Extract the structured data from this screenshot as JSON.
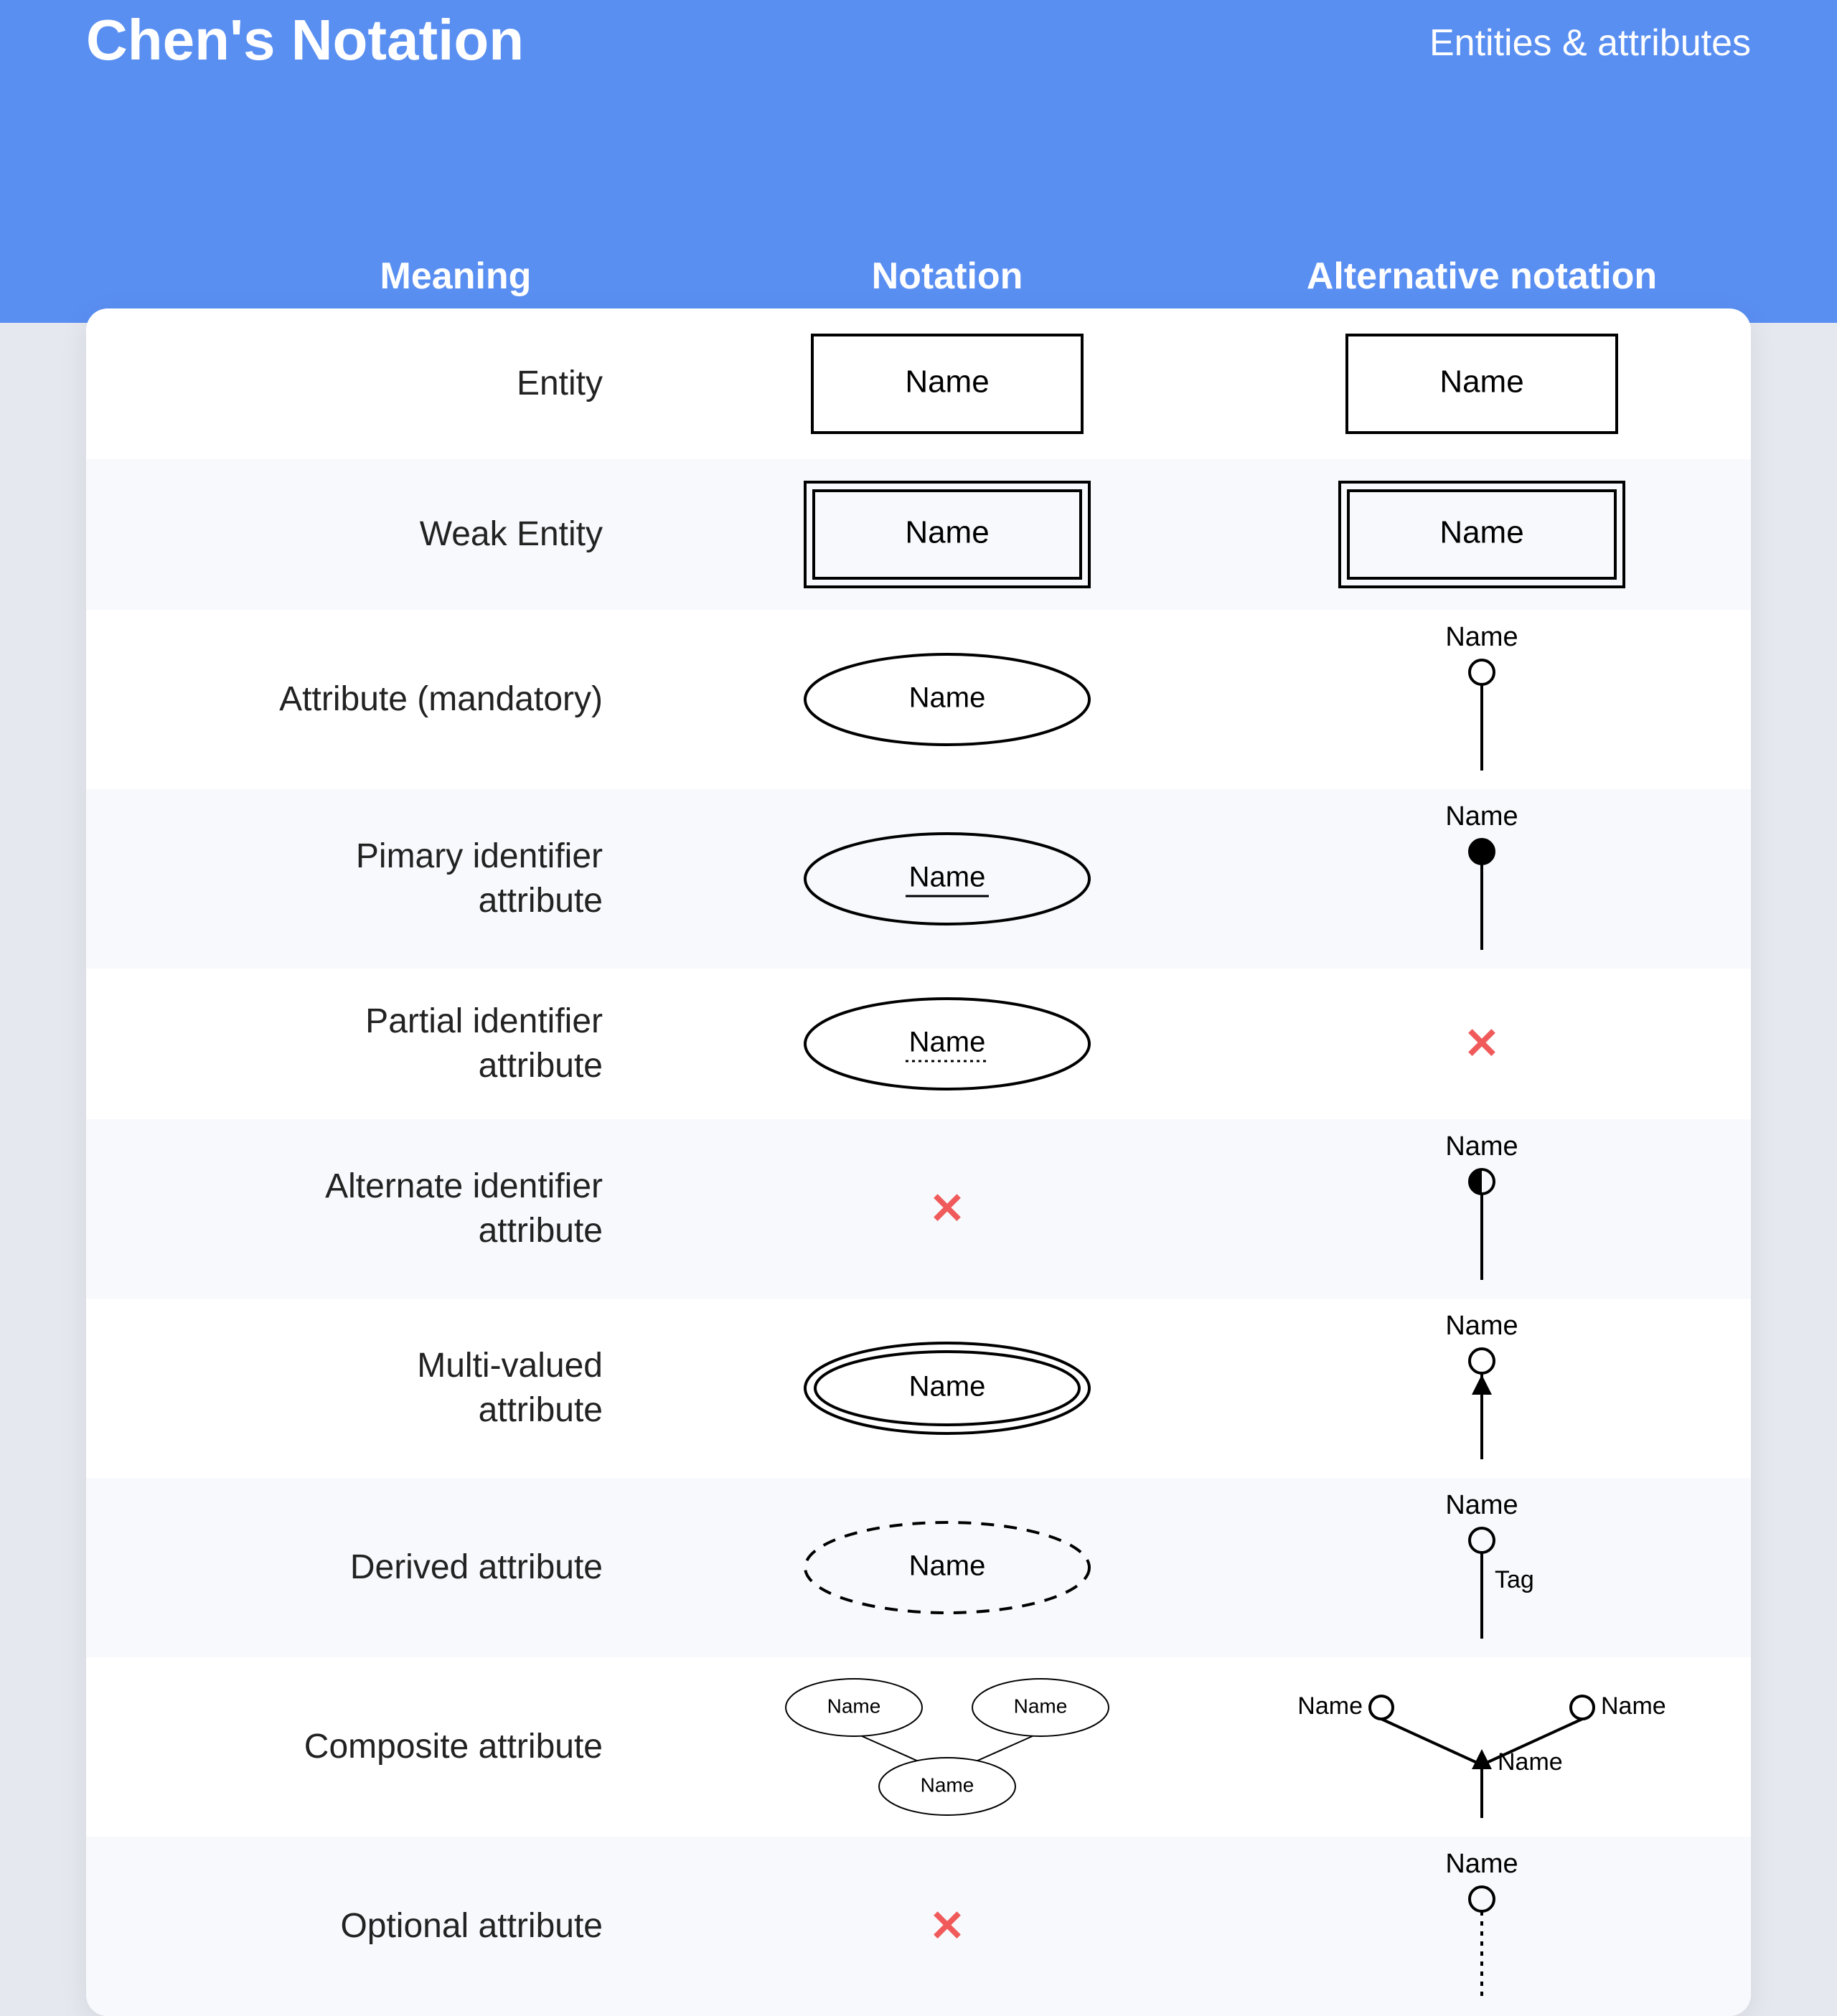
{
  "header": {
    "title": "Chen's Notation",
    "subtitle": "Entities & attributes"
  },
  "columns": {
    "meaning": "Meaning",
    "notation": "Notation",
    "alternative": "Alternative notation"
  },
  "shape_label": "Name",
  "tag_label": "Tag",
  "cross_glyph": "✕",
  "colors": {
    "header_bg": "#5a8ff2",
    "page_bg": "#e6e8ef",
    "card_bg": "#ffffff",
    "row_alt_bg": "#f7f9fc",
    "stroke": "#000000",
    "text": "#000000",
    "cross": "#f05a5a"
  },
  "stroke_width": 4,
  "rows": [
    {
      "meaning": "Entity",
      "notation": "rect",
      "alternative": "rect"
    },
    {
      "meaning": "Weak Entity",
      "notation": "rect-double",
      "alternative": "rect-double"
    },
    {
      "meaning": "Attribute (mandatory)",
      "notation": "ellipse",
      "alternative": "lolli-open"
    },
    {
      "meaning": "Pimary identifier attribute",
      "notation": "ellipse-underline",
      "alternative": "lolli-filled"
    },
    {
      "meaning": "Partial identifier attribute",
      "notation": "ellipse-dotted-underline",
      "alternative": "cross"
    },
    {
      "meaning": "Alternate identifier attribute",
      "notation": "cross",
      "alternative": "lolli-half"
    },
    {
      "meaning": "Multi-valued attribute",
      "notation": "ellipse-double",
      "alternative": "lolli-arrow"
    },
    {
      "meaning": "Derived attribute",
      "notation": "ellipse-dashed",
      "alternative": "lolli-tag"
    },
    {
      "meaning": "Composite attribute",
      "notation": "composite-ellipses",
      "alternative": "composite-lolli"
    },
    {
      "meaning": "Optional attribute",
      "notation": "cross",
      "alternative": "lolli-dashed"
    }
  ]
}
